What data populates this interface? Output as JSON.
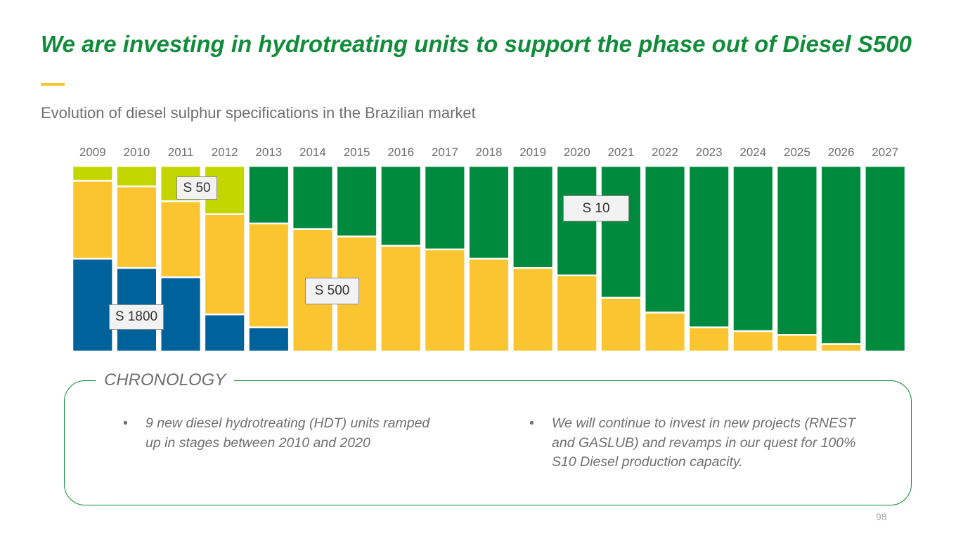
{
  "title": "We are investing in hydrotreating units to support the phase out of Diesel S500",
  "subtitle": "Evolution of diesel sulphur specifications in the Brazilian market",
  "colors": {
    "title": "#118c3b",
    "accent_bar": "#f9c82e",
    "S10": "#008a3e",
    "S50": "#c4d600",
    "S500": "#fbc531",
    "S1800": "#00629b"
  },
  "chart_data": {
    "type": "bar",
    "stacked": true,
    "normalized_100_percent": true,
    "title": "Evolution of diesel sulphur specifications in the Brazilian market",
    "categories": [
      "2009",
      "2010",
      "2011",
      "2012",
      "2013",
      "2014",
      "2015",
      "2016",
      "2017",
      "2018",
      "2019",
      "2020",
      "2021",
      "2022",
      "2023",
      "2024",
      "2025",
      "2026",
      "2027"
    ],
    "series": [
      {
        "name": "S 1800",
        "color": "#00629b",
        "values": [
          50,
          45,
          40,
          20,
          13,
          0,
          0,
          0,
          0,
          0,
          0,
          0,
          0,
          0,
          0,
          0,
          0,
          0,
          0
        ]
      },
      {
        "name": "S 500",
        "color": "#fbc531",
        "values": [
          42,
          44,
          41,
          54,
          56,
          66,
          62,
          57,
          55,
          50,
          45,
          41,
          29,
          21,
          13,
          11,
          9,
          4,
          0
        ]
      },
      {
        "name": "S 50",
        "color": "#c4d600",
        "values": [
          8,
          11,
          19,
          26,
          0,
          0,
          0,
          0,
          0,
          0,
          0,
          0,
          0,
          0,
          0,
          0,
          0,
          0,
          0
        ]
      },
      {
        "name": "S 10",
        "color": "#008a3e",
        "values": [
          0,
          0,
          0,
          0,
          31,
          34,
          38,
          43,
          45,
          50,
          55,
          59,
          71,
          79,
          87,
          89,
          91,
          96,
          100
        ]
      }
    ],
    "ylim": [
      0,
      100
    ],
    "xlabel": "",
    "ylabel": "",
    "labels": {
      "S1800": "S 1800",
      "S500": "S 500",
      "S50": "S 50",
      "S10": "S 10"
    }
  },
  "chronology": {
    "title": "CHRONOLOGY",
    "bullet_char": "•",
    "items": [
      "9 new diesel hydrotreating (HDT) units ramped up in stages between 2010 and 2020",
      "We will continue to invest in new projects (RNEST and GASLUB) and revamps in our quest for 100% S10 Diesel production capacity."
    ]
  },
  "page_number": "98"
}
